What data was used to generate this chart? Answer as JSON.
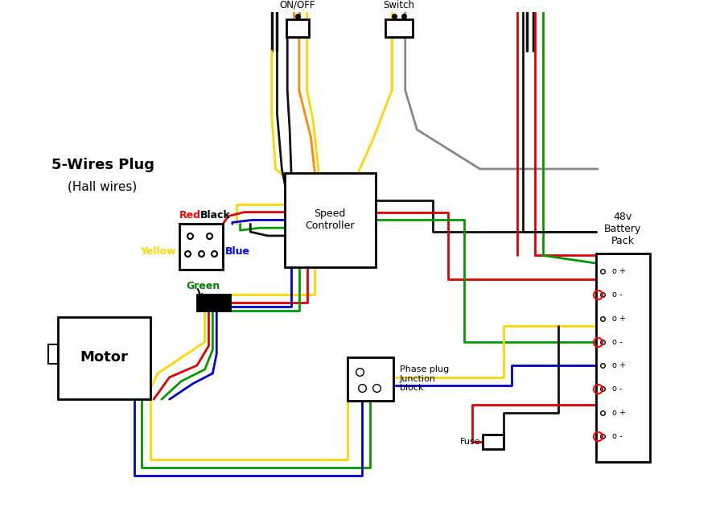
{
  "bg_color": "#ffffff",
  "wire_colors": {
    "black": "#111111",
    "yellow": "#FFD700",
    "red": "#DD0000",
    "blue": "#0000CC",
    "green": "#009900",
    "orange": "#FF8800",
    "gray": "#888888",
    "darkred": "#990000"
  },
  "labels": {
    "five_wire": "5-Wires Plug",
    "hall": "(Hall wires)",
    "red_lbl": "Red",
    "black_lbl": "Black",
    "yellow_lbl": "Yellow",
    "blue_lbl": "Blue",
    "green_lbl": "Green",
    "speed_ctrl": "Speed\nController",
    "motor": "Motor",
    "on_off": "ON/OFF",
    "switch": "Switch",
    "phase_plug": "Phase plug\nJunction\nblock",
    "battery": "48v\nBattery\nPack",
    "fuse": "Fuse"
  }
}
